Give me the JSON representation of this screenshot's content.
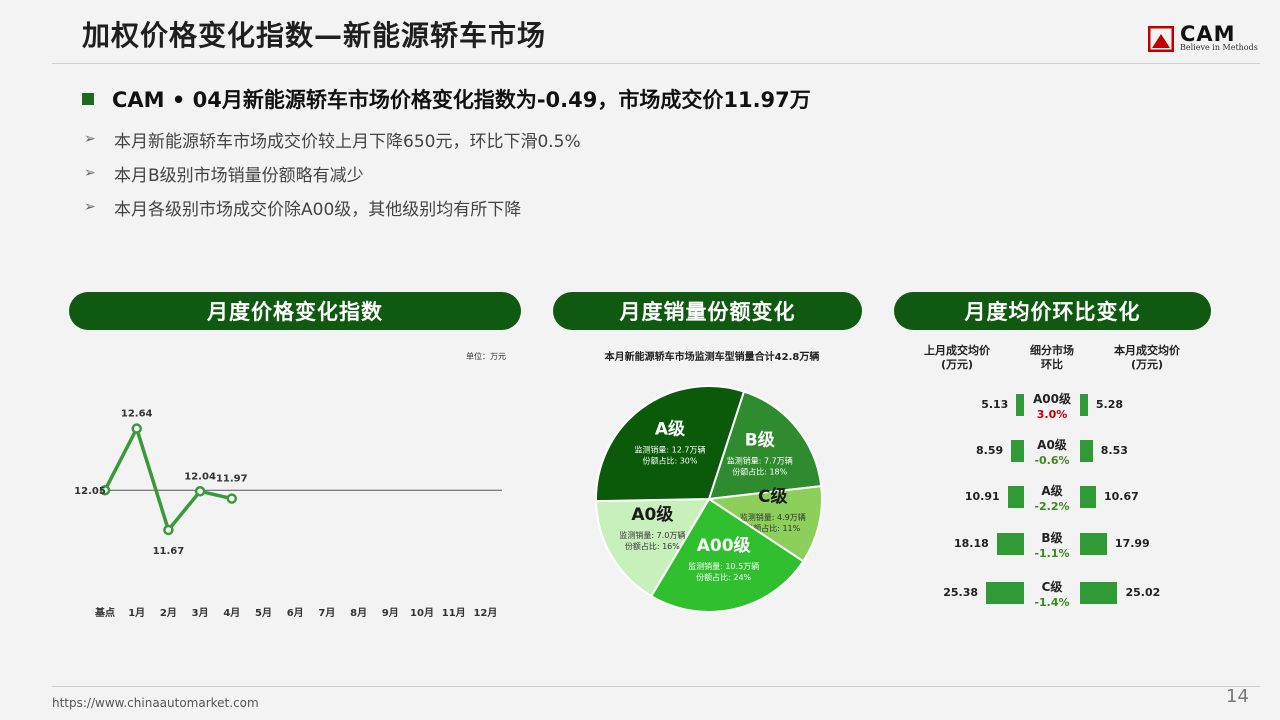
{
  "header": {
    "title": "加权价格变化指数—新能源轿车市场",
    "logo_text": "CAM",
    "logo_tagline": "Believe in Methods"
  },
  "headline": "CAM • 04月新能源轿车市场价格变化指数为-0.49，市场成交价11.97万",
  "bullets": [
    "本月新能源轿车市场成交价较上月下降650元，环比下滑0.5%",
    "本月B级别市场销量份额略有减少",
    "本月各级别市场成交价除A00级，其他级别均有所下降"
  ],
  "sections": {
    "index_title": "月度价格变化指数",
    "share_title": "月度销量份额变化",
    "avgprice_title": "月度均价环比变化"
  },
  "unit_note": "单位：万元",
  "pie_caption": "本月新能源轿车市场监测车型销量合计42.8万辆",
  "avg_headers": {
    "prev": "上月成交均价\n(万元)",
    "seg": "细分市场\n环比",
    "curr": "本月成交均价\n(万元)"
  },
  "colors": {
    "accent": "#0f5a10",
    "bar": "#2f9a36",
    "line": "#3a9a3a",
    "positive": "#c00000",
    "negative": "#3a8a1e"
  },
  "chart_data": [
    {
      "type": "line",
      "title": "月度价格变化指数",
      "x": [
        "基点",
        "1月",
        "2月",
        "3月",
        "4月",
        "5月",
        "6月",
        "7月",
        "8月",
        "9月",
        "10月",
        "11月",
        "12月"
      ],
      "series": [
        {
          "values": [
            12.05,
            12.64,
            11.67,
            12.04,
            11.97,
            null,
            null,
            null,
            null,
            null,
            null,
            null,
            null
          ]
        }
      ],
      "ylim": [
        11.0,
        13.2
      ],
      "grid": false,
      "baseline": 12.05
    },
    {
      "type": "pie",
      "title": "本月新能源轿车市场监测车型销量合计42.8万辆",
      "slices": [
        {
          "name": "B级",
          "volume_label": "监测销量: 7.7万辆",
          "share_label": "份额占比: 18%",
          "share": 18,
          "color": "#2e8b2e"
        },
        {
          "name": "C级",
          "volume_label": "监测销量: 4.9万辆",
          "share_label": "份额占比: 11%",
          "share": 11,
          "color": "#8ccf5a"
        },
        {
          "name": "A00级",
          "volume_label": "监测销量: 10.5万辆",
          "share_label": "份额占比: 24%",
          "share": 24,
          "color": "#2fbf2f"
        },
        {
          "name": "A0级",
          "volume_label": "监测销量: 7.0万辆",
          "share_label": "份额占比: 16%",
          "share": 16,
          "color": "#c8f0bc"
        },
        {
          "name": "A级",
          "volume_label": "监测销量: 12.7万辆",
          "share_label": "份额占比: 30%",
          "share": 30,
          "color": "#0a5a0a"
        }
      ]
    },
    {
      "type": "bar",
      "title": "月度均价环比变化",
      "categories": [
        "A00级",
        "A0级",
        "A级",
        "B级",
        "C级"
      ],
      "series": [
        {
          "name": "上月成交均价",
          "values": [
            5.13,
            8.59,
            10.91,
            18.18,
            25.38
          ]
        },
        {
          "name": "本月成交均价",
          "values": [
            5.28,
            8.53,
            10.67,
            17.99,
            25.02
          ]
        }
      ],
      "labels": [
        {
          "prev": "5.13",
          "curr": "5.28"
        },
        {
          "prev": "8.59",
          "curr": "8.53"
        },
        {
          "prev": "10.91",
          "curr": "10.67"
        },
        {
          "prev": "18.18",
          "curr": "17.99"
        },
        {
          "prev": "25.38",
          "curr": "25.02"
        }
      ],
      "changes": [
        "3.0%",
        "-0.6%",
        "-2.2%",
        "-1.1%",
        "-1.4%"
      ]
    }
  ],
  "footer": {
    "url": "https://www.chinaautomarket.com",
    "page_number": "14"
  }
}
